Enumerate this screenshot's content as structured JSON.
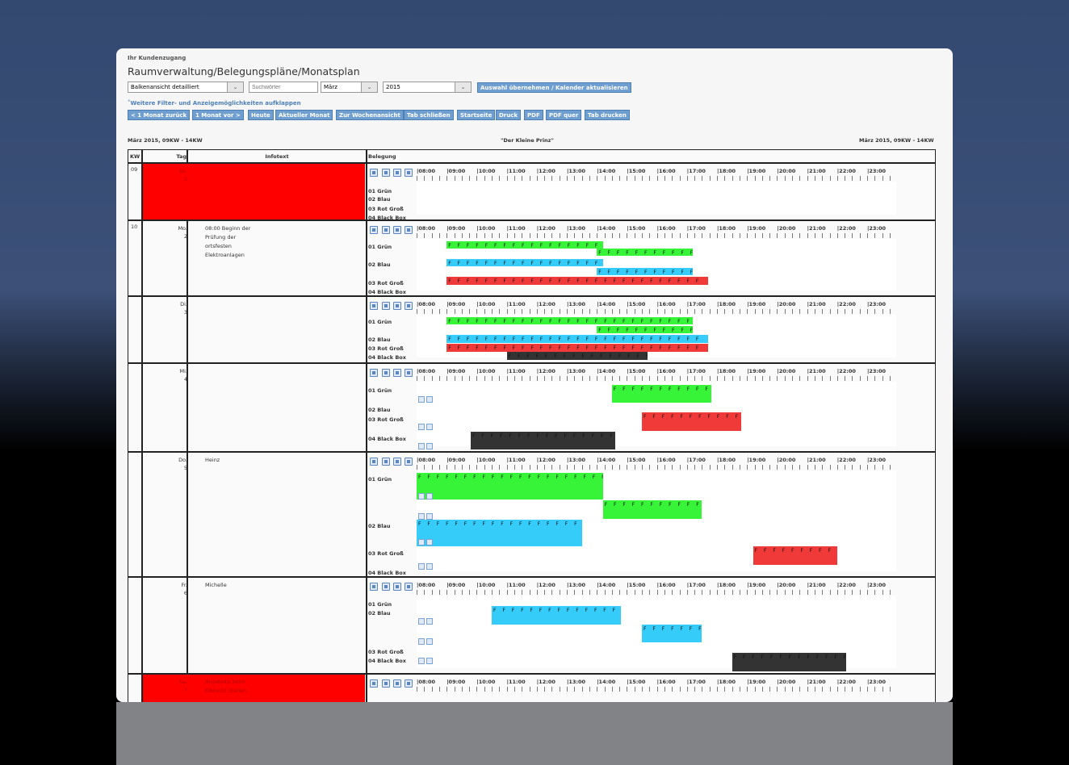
{
  "header": {
    "customer_access": "Ihr Kundenzugang",
    "title": "Raumverwaltung/Belegungspläne/Monatsplan"
  },
  "filters": {
    "view": "Balkenansicht detailliert",
    "search_placeholder": "Suchwörter",
    "month": "März",
    "year": "2015",
    "apply_label": "Auswahl übernehmen / Kalender aktualisieren",
    "more_filters": "˚Weitere Filter- und Anzeigemöglichkeiten aufklappen"
  },
  "toolbar": [
    "< 1 Monat zurück",
    "1 Monat vor >",
    "Heute",
    "Aktueller Monat",
    "Zur Wochenansicht",
    "Tab schließen",
    "Startseite",
    "Druck",
    "PDF",
    "PDF quer",
    "Tab drucken"
  ],
  "meta": {
    "left": "März 2015, 09KW - 14KW",
    "center": "\"Der Kleine Prinz\"",
    "right": "März 2015, 09KW - 14KW"
  },
  "table": {
    "headers": {
      "kw": "KW",
      "tag": "Tag",
      "info": "Infotext",
      "belegung": "Belegung"
    }
  },
  "timeline_hours": [
    "08:00",
    "09:00",
    "10:00",
    "11:00",
    "12:00",
    "13:00",
    "14:00",
    "15:00",
    "16:00",
    "17:00",
    "18:00",
    "19:00",
    "20:00",
    "21:00",
    "22:00",
    "23:00"
  ],
  "rooms": [
    "01 Grün",
    "02 Blau",
    "03 Rot Groß",
    "04 Black Box"
  ],
  "days": [
    {
      "kw": "09",
      "day": "So.",
      "num": "1",
      "info": [],
      "red": true
    },
    {
      "kw": "10",
      "day": "Mo.",
      "num": "2",
      "info": [
        "08:00 Beginn der",
        "Prüfung der",
        "ortsfesten",
        "Elektroanlagen"
      ],
      "red": false
    },
    {
      "kw": "",
      "day": "Di.",
      "num": "3",
      "info": [],
      "red": false
    },
    {
      "kw": "",
      "day": "Mi.",
      "num": "4",
      "info": [],
      "red": false
    },
    {
      "kw": "",
      "day": "Do.",
      "num": "5",
      "info": [
        "Heinz"
      ],
      "red": false
    },
    {
      "kw": "",
      "day": "Fr.",
      "num": "6",
      "info": [
        "Michelle"
      ],
      "red": false
    },
    {
      "kw": "",
      "day": "Sa.",
      "num": "7",
      "info": [
        "Angebote beim",
        "Elbrecht Stellen"
      ],
      "red": true
    }
  ],
  "bar_fill": "F F F F F F F F F F F F F F F F F F F F F F F F F F F F",
  "colors": {
    "green": "#38f438",
    "blue": "#35ccf9",
    "red": "#f03a3a",
    "black": "#333333",
    "weekend": "#ff0000",
    "button": "#6f9ed1"
  }
}
